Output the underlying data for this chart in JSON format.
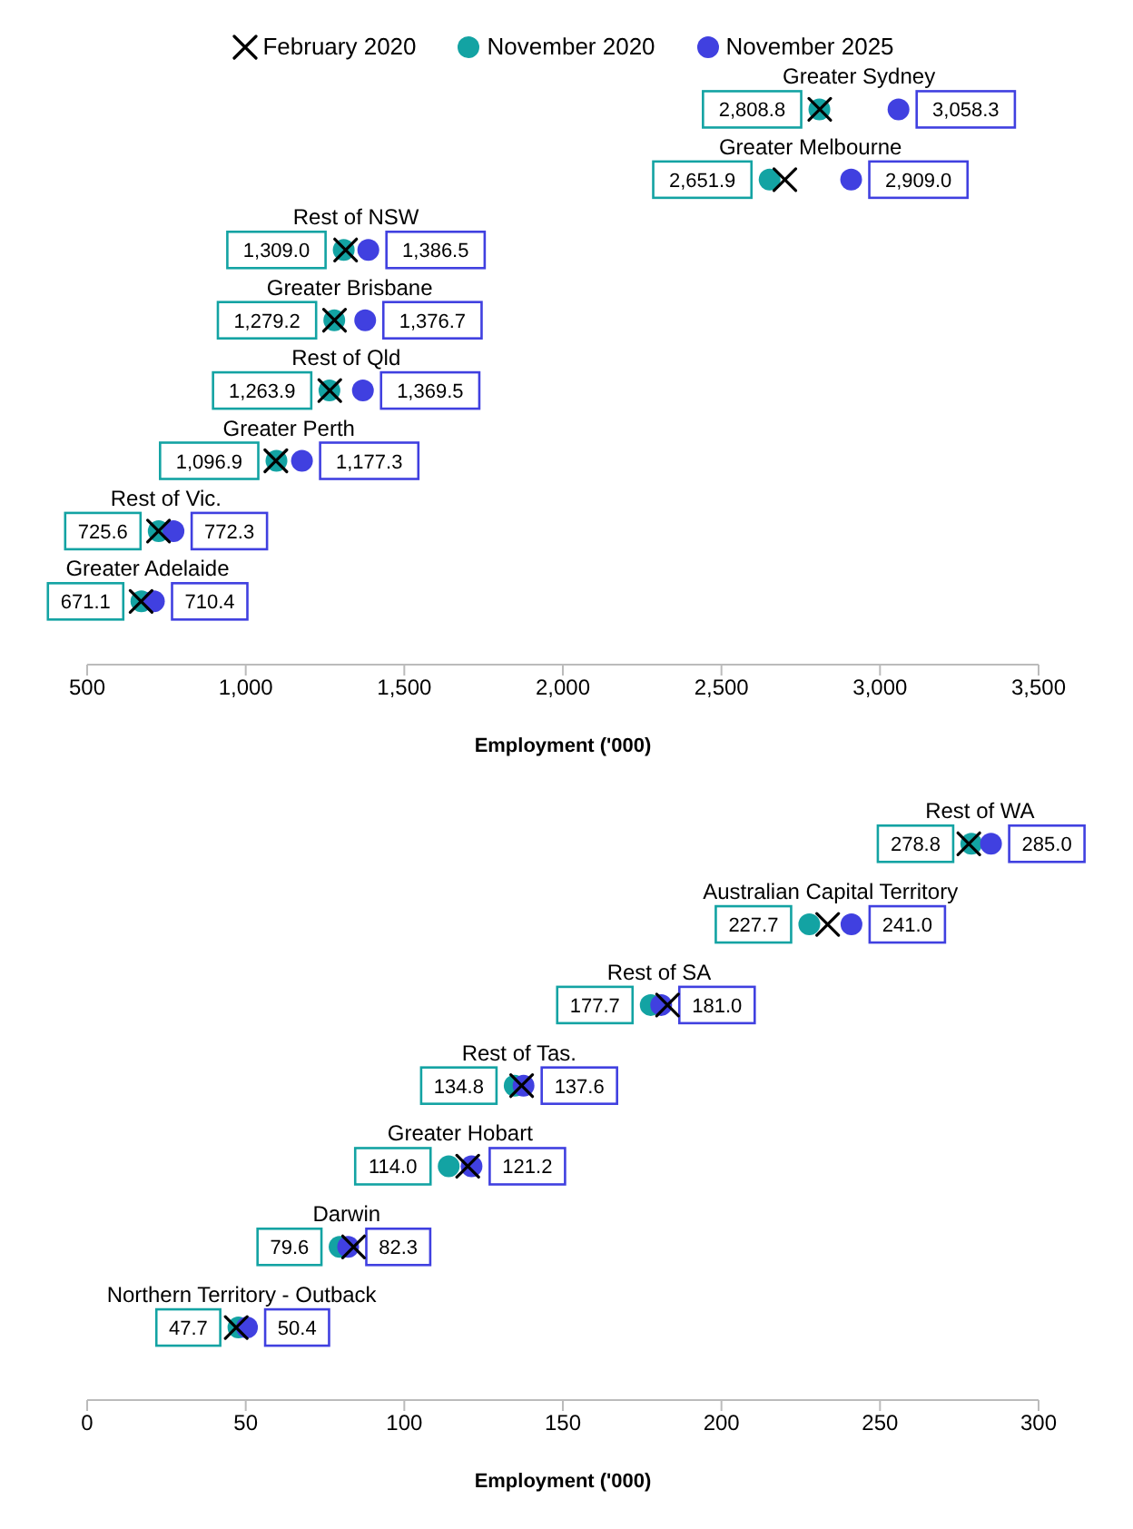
{
  "chart_data": [
    {
      "type": "scatter",
      "orientation": "horizontal",
      "categories": [
        "Greater Sydney",
        "Greater Melbourne",
        "Rest of NSW",
        "Greater Brisbane",
        "Rest of Qld",
        "Greater Perth",
        "Rest of Vic.",
        "Greater Adelaide"
      ],
      "series": [
        {
          "name": "February 2020",
          "color": "#000000",
          "marker": "cross",
          "values": [
            2810,
            2700,
            1315,
            1280,
            1265,
            1095,
            725,
            670
          ]
        },
        {
          "name": "November 2020",
          "color": "#13a3a3",
          "marker": "circle",
          "values": [
            2808.8,
            2651.9,
            1309.0,
            1279.2,
            1263.9,
            1096.9,
            725.6,
            671.1
          ],
          "value_labels": [
            "2,808.8",
            "2,651.9",
            "1,309.0",
            "1,279.2",
            "1,263.9",
            "1,096.9",
            "725.6",
            "671.1"
          ]
        },
        {
          "name": "November 2025",
          "color": "#4040e0",
          "marker": "circle",
          "values": [
            3058.3,
            2909.0,
            1386.5,
            1376.7,
            1369.5,
            1177.3,
            772.3,
            710.4
          ],
          "value_labels": [
            "3,058.3",
            "2,909.0",
            "1,386.5",
            "1,376.7",
            "1,369.5",
            "1,177.3",
            "772.3",
            "710.4"
          ]
        }
      ],
      "xlim": [
        500,
        3500
      ],
      "xticks": [
        {
          "value": 500,
          "label": "500"
        },
        {
          "value": 1000,
          "label": "1,000"
        },
        {
          "value": 1500,
          "label": "1,500"
        },
        {
          "value": 2000,
          "label": "2,000"
        },
        {
          "value": 2500,
          "label": "2,500"
        },
        {
          "value": 3000,
          "label": "3,000"
        },
        {
          "value": 3500,
          "label": "3,500"
        }
      ],
      "xlabel": "Employment ('000)",
      "legend": "top",
      "grid": false
    },
    {
      "type": "scatter",
      "orientation": "horizontal",
      "categories": [
        "Rest of WA",
        "Australian Capital Territory",
        "Rest of SA",
        "Rest of Tas.",
        "Greater Hobart",
        "Darwin",
        "Northern Territory - Outback"
      ],
      "series": [
        {
          "color": "#000000",
          "marker": "cross",
          "values": [
            278,
            233.5,
            183,
            137,
            120,
            84,
            47
          ]
        },
        {
          "color": "#13a3a3",
          "marker": "circle",
          "values": [
            278.8,
            227.7,
            177.7,
            134.8,
            114.0,
            79.6,
            47.7
          ],
          "value_labels": [
            "278.8",
            "227.7",
            "177.7",
            "134.8",
            "114.0",
            "79.6",
            "47.7"
          ]
        },
        {
          "color": "#4040e0",
          "marker": "circle",
          "values": [
            285.0,
            241.0,
            181.0,
            137.6,
            121.2,
            82.3,
            50.4
          ],
          "value_labels": [
            "285.0",
            "241.0",
            "181.0",
            "137.6",
            "121.2",
            "82.3",
            "50.4"
          ]
        }
      ],
      "xlim": [
        0,
        300
      ],
      "xticks": [
        {
          "value": 0,
          "label": "0"
        },
        {
          "value": 50,
          "label": "50"
        },
        {
          "value": 100,
          "label": "100"
        },
        {
          "value": 150,
          "label": "150"
        },
        {
          "value": 200,
          "label": "200"
        },
        {
          "value": 250,
          "label": "250"
        },
        {
          "value": 300,
          "label": "300"
        }
      ],
      "xlabel": "Employment ('000)",
      "legend": false,
      "grid": false
    }
  ]
}
